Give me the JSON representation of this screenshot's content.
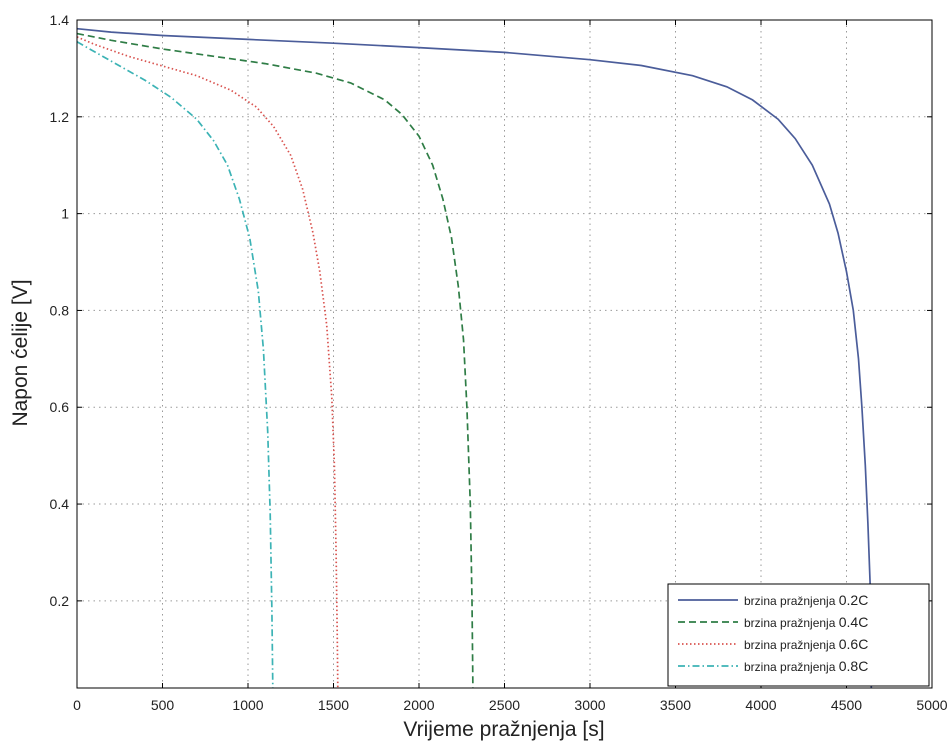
{
  "chart_data": {
    "type": "line",
    "xlabel": "Vrijeme pražnjenja [s]",
    "ylabel": "Napon ćelije [V]",
    "xlim": [
      0,
      5000
    ],
    "ylim": [
      0.02,
      1.4
    ],
    "xticks": [
      0,
      500,
      1000,
      1500,
      2000,
      2500,
      3000,
      3500,
      4000,
      4500,
      5000
    ],
    "yticks": [
      0.2,
      0.4,
      0.6,
      0.8,
      1.0,
      1.2,
      1.4
    ],
    "ytick_labels": [
      "0.2",
      "0.4",
      "0.6",
      "0.8",
      "1",
      "1.2",
      "1.4"
    ],
    "grid": true,
    "legend_position": "bottom-right",
    "series": [
      {
        "label_prefix": "brzina pražnjenja",
        "label_suffix": "0.2C",
        "color": "#4b5d9a",
        "dash": "solid",
        "x": [
          0,
          200,
          500,
          1000,
          1500,
          2000,
          2500,
          3000,
          3300,
          3600,
          3800,
          3950,
          4100,
          4200,
          4300,
          4400,
          4450,
          4500,
          4540,
          4570,
          4590,
          4610,
          4625,
          4640,
          4645
        ],
        "y": [
          1.382,
          1.375,
          1.368,
          1.36,
          1.352,
          1.343,
          1.333,
          1.318,
          1.306,
          1.285,
          1.262,
          1.235,
          1.195,
          1.155,
          1.1,
          1.02,
          0.96,
          0.88,
          0.8,
          0.7,
          0.6,
          0.48,
          0.36,
          0.22,
          0.02
        ]
      },
      {
        "label_prefix": "brzina pražnjenja",
        "label_suffix": "0.4C",
        "color": "#2f7d46",
        "dash": "dashed",
        "x": [
          0,
          200,
          500,
          800,
          1100,
          1400,
          1600,
          1800,
          1900,
          2000,
          2080,
          2140,
          2190,
          2230,
          2260,
          2280,
          2300,
          2310,
          2315
        ],
        "y": [
          1.372,
          1.358,
          1.34,
          1.325,
          1.31,
          1.29,
          1.27,
          1.235,
          1.205,
          1.16,
          1.1,
          1.03,
          0.95,
          0.85,
          0.74,
          0.6,
          0.4,
          0.2,
          0.02
        ]
      },
      {
        "label_prefix": "brzina pražnjenja",
        "label_suffix": "0.6C",
        "color": "#d9534f",
        "dash": "dotted",
        "x": [
          0,
          100,
          300,
          500,
          700,
          900,
          1050,
          1150,
          1250,
          1320,
          1380,
          1420,
          1460,
          1490,
          1505,
          1515,
          1522,
          1525
        ],
        "y": [
          1.365,
          1.35,
          1.325,
          1.305,
          1.285,
          1.255,
          1.22,
          1.18,
          1.12,
          1.05,
          0.96,
          0.88,
          0.77,
          0.62,
          0.48,
          0.3,
          0.12,
          0.02
        ]
      },
      {
        "label_prefix": "brzina pražnjenja",
        "label_suffix": "0.8C",
        "color": "#3cb3b5",
        "dash": "dashdot",
        "x": [
          0,
          100,
          250,
          400,
          550,
          700,
          800,
          880,
          950,
          1010,
          1060,
          1090,
          1115,
          1130,
          1140,
          1145
        ],
        "y": [
          1.355,
          1.335,
          1.305,
          1.275,
          1.24,
          1.195,
          1.15,
          1.1,
          1.03,
          0.95,
          0.84,
          0.72,
          0.55,
          0.38,
          0.18,
          0.02
        ]
      }
    ]
  }
}
